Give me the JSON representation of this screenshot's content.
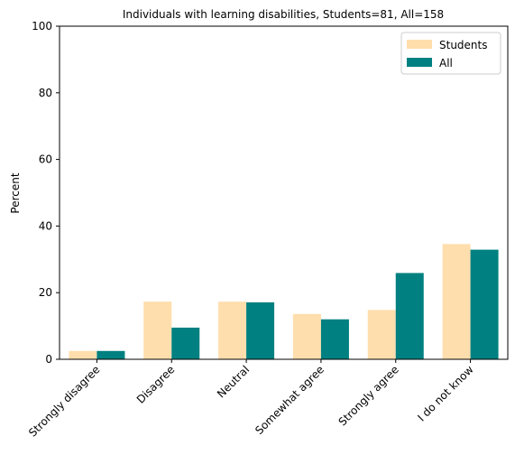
{
  "chart_data": {
    "type": "bar",
    "title": "Individuals with learning disabilities, Students=81, All=158",
    "xlabel": "",
    "ylabel": "Percent",
    "ylim": [
      0,
      100
    ],
    "yticks": [
      0,
      20,
      40,
      60,
      80,
      100
    ],
    "categories": [
      "Strongly disagree",
      "Disagree",
      "Neutral",
      "Somewhat agree",
      "Strongly agree",
      "I do not know"
    ],
    "series": [
      {
        "name": "Students",
        "color": "#ffdead",
        "values": [
          2.5,
          17.3,
          17.3,
          13.6,
          14.8,
          34.6
        ]
      },
      {
        "name": "All",
        "color": "#008080",
        "values": [
          2.5,
          9.5,
          17.1,
          12.0,
          25.9,
          32.9
        ]
      }
    ],
    "legend": "top-right",
    "grid": false
  }
}
